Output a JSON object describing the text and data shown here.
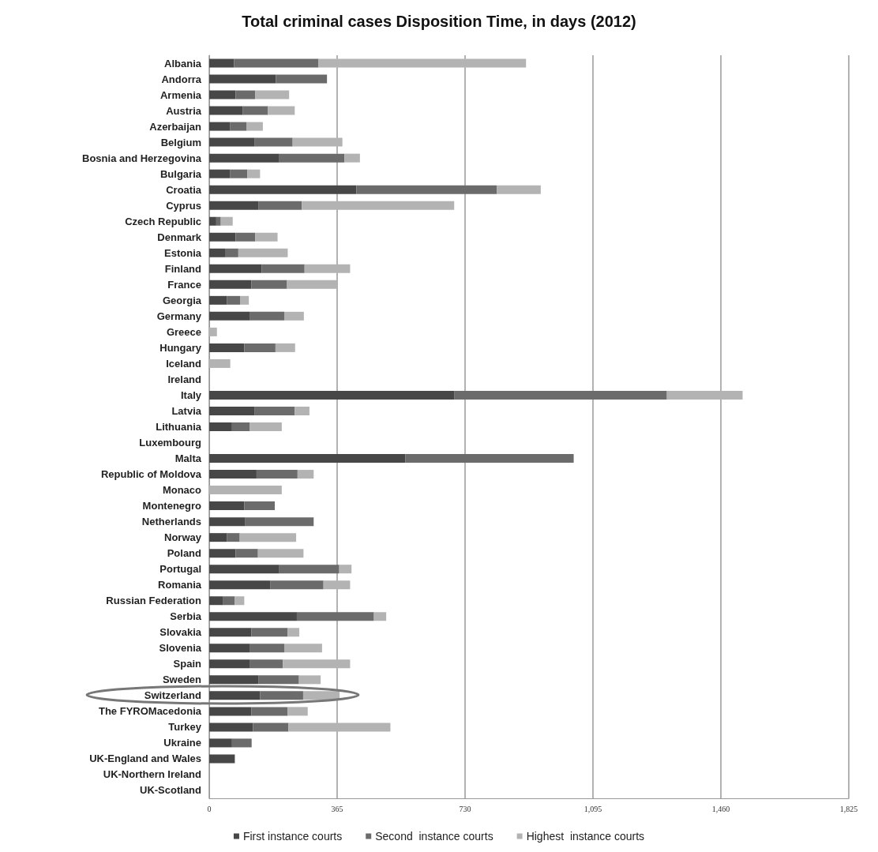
{
  "chart_data": {
    "type": "bar",
    "orientation": "horizontal",
    "stacked": true,
    "title": "Total criminal cases Disposition Time, in days (2012)",
    "categories": [
      "Albania",
      "Andorra",
      "Armenia",
      "Austria",
      "Azerbaijan",
      "Belgium",
      "Bosnia and Herzegovina",
      "Bulgaria",
      "Croatia",
      "Cyprus",
      "Czech Republic",
      "Denmark",
      "Estonia",
      "Finland",
      "France",
      "Georgia",
      "Germany",
      "Greece",
      "Hungary",
      "Iceland",
      "Ireland",
      "Italy",
      "Latvia",
      "Lithuania",
      "Luxembourg",
      "Malta",
      "Republic of Moldova",
      "Monaco",
      "Montenegro",
      "Netherlands",
      "Norway",
      "Poland",
      "Portugal",
      "Romania",
      "Russian Federation",
      "Serbia",
      "Slovakia",
      "Slovenia",
      "Spain",
      "Sweden",
      "Switzerland",
      "The FYROMacedonia",
      "Turkey",
      "Ukraine",
      "UK-England and Wales",
      "UK-Northern Ireland",
      "UK-Scotland"
    ],
    "series": [
      {
        "name": "First instance courts",
        "color": "#474747",
        "values": [
          71,
          190,
          75,
          95,
          60,
          130,
          200,
          60,
          420,
          140,
          20,
          75,
          45,
          150,
          120,
          50,
          115,
          null,
          100,
          null,
          null,
          700,
          130,
          65,
          null,
          560,
          135,
          null,
          100,
          103,
          50,
          75,
          200,
          175,
          40,
          250,
          120,
          115,
          115,
          140,
          145,
          120,
          125,
          65,
          73,
          null,
          null
        ]
      },
      {
        "name": "Second  instance courts",
        "color": "#6b6b6b",
        "values": [
          241,
          146,
          56,
          72,
          47,
          108,
          186,
          49,
          401,
          124,
          13,
          56,
          38,
          122,
          102,
          39,
          99,
          null,
          89,
          null,
          null,
          606,
          114,
          50,
          null,
          480,
          117,
          null,
          87,
          195,
          37,
          64,
          171,
          151,
          33,
          220,
          104,
          99,
          95,
          116,
          123,
          104,
          101,
          56,
          null,
          null,
          null
        ]
      },
      {
        "name": "Highest  instance courts",
        "color": "#b3b3b3",
        "values": [
          592,
          null,
          97,
          77,
          46,
          142,
          44,
          36,
          125,
          435,
          34,
          64,
          141,
          130,
          142,
          24,
          56,
          22,
          56,
          60,
          null,
          216,
          42,
          92,
          null,
          null,
          46,
          207,
          null,
          null,
          161,
          130,
          35,
          76,
          27,
          35,
          33,
          108,
          192,
          62,
          104,
          57,
          291,
          null,
          null,
          null,
          null
        ]
      }
    ],
    "xlim": [
      0,
      1825
    ],
    "xticks": [
      0,
      365,
      730,
      {
        "value": 1095,
        "label": "1,095"
      },
      {
        "value": 1460,
        "label": "1,460"
      },
      {
        "value": 1825,
        "label": "1,825"
      }
    ],
    "grid": "x",
    "legend": "bottom"
  }
}
